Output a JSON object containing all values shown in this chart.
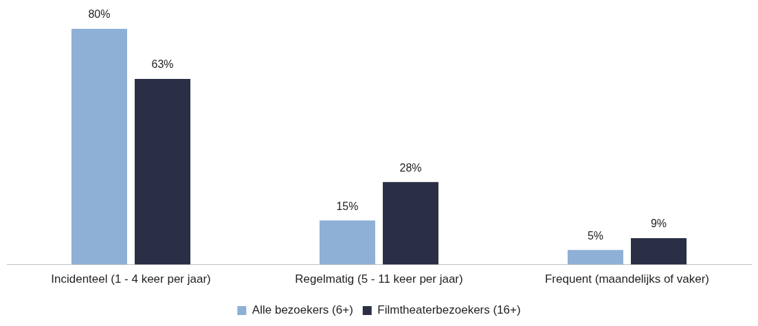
{
  "chart_data": {
    "type": "bar",
    "categories": [
      "Incidenteel (1 - 4 keer per jaar)",
      "Regelmatig (5 - 11 keer per jaar)",
      "Frequent (maandelijks of vaker)"
    ],
    "series": [
      {
        "name": "Alle bezoekers (6+)",
        "color": "#8eb0d6",
        "values": [
          80,
          15,
          5
        ],
        "value_labels": [
          "80%",
          "15%",
          "5%"
        ]
      },
      {
        "name": "Filmtheaterbezoekers (16+)",
        "color": "#2a2f45",
        "values": [
          63,
          28,
          9
        ],
        "value_labels": [
          "63%",
          "28%",
          "9%"
        ]
      }
    ],
    "grid": false,
    "legend": "bottom"
  }
}
